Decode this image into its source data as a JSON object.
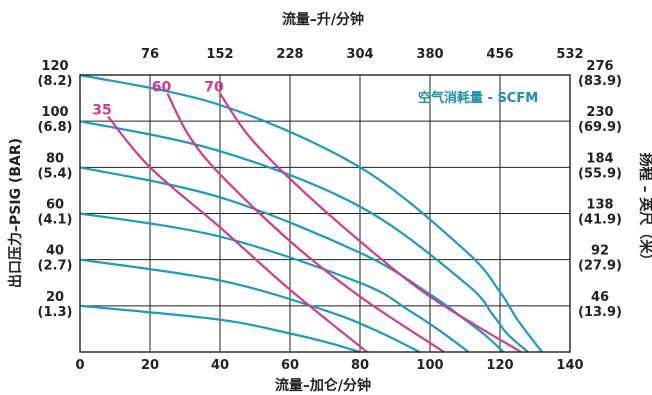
{
  "chart_data": {
    "type": "line",
    "title": "",
    "xlabel": "流量–加仑/分钟",
    "x2label": "流量–升/分钟",
    "ylabel": "出口压力–PSIG (BAR)",
    "y2label": "扬程 – 英尺（米）",
    "xlim": [
      0,
      140
    ],
    "ylim": [
      0,
      120
    ],
    "x_ticks": [
      "0",
      "20",
      "40",
      "60",
      "80",
      "100",
      "120",
      "140"
    ],
    "x2_ticks": [
      "76",
      "152",
      "228",
      "304",
      "380",
      "456",
      "532"
    ],
    "y_ticks": [
      {
        "value": 20,
        "psi": "20",
        "bar": "(1.3)"
      },
      {
        "value": 40,
        "psi": "40",
        "bar": "(2.7)"
      },
      {
        "value": 60,
        "psi": "60",
        "bar": "(4.1)"
      },
      {
        "value": 80,
        "psi": "80",
        "bar": "(5.4)"
      },
      {
        "value": 100,
        "psi": "100",
        "bar": "(6.8)"
      },
      {
        "value": 120,
        "psi": "120",
        "bar": "(8.2)"
      }
    ],
    "y2_ticks": [
      {
        "value": 20,
        "ft": "46",
        "m": "(13.9)"
      },
      {
        "value": 40,
        "ft": "92",
        "m": "(27.9)"
      },
      {
        "value": 60,
        "ft": "138",
        "m": "(41.9)"
      },
      {
        "value": 80,
        "ft": "184",
        "m": "(55.9)"
      },
      {
        "value": 100,
        "ft": "230",
        "m": "(69.9)"
      },
      {
        "value": 120,
        "ft": "276",
        "m": "(83.9)"
      }
    ],
    "annotation": "空气消耗量 - SCFM",
    "grid": true,
    "pressure_curves": [
      {
        "x": [
          0,
          40,
          80,
          110,
          120,
          125,
          132
        ],
        "y": [
          120,
          107,
          80,
          44,
          26,
          14,
          0
        ]
      },
      {
        "x": [
          0,
          40,
          80,
          110,
          118,
          122,
          128
        ],
        "y": [
          100,
          87,
          63,
          30,
          16,
          8,
          0
        ]
      },
      {
        "x": [
          0,
          40,
          80,
          100,
          110,
          116,
          121
        ],
        "y": [
          80,
          67,
          43,
          25,
          14,
          7,
          0
        ]
      },
      {
        "x": [
          0,
          40,
          80,
          94,
          103,
          111
        ],
        "y": [
          60,
          50,
          30,
          18,
          9,
          0
        ]
      },
      {
        "x": [
          0,
          40,
          70,
          85,
          97
        ],
        "y": [
          40,
          31,
          18,
          9,
          0
        ]
      },
      {
        "x": [
          0,
          40,
          60,
          71,
          80
        ],
        "y": [
          20,
          14,
          8,
          4,
          0
        ]
      }
    ],
    "series": [
      {
        "name": "35",
        "x": [
          8,
          20,
          40,
          60,
          82
        ],
        "y": [
          102,
          80,
          54,
          27,
          0
        ]
      },
      {
        "name": "60",
        "x": [
          25,
          31,
          40,
          60,
          80,
          104
        ],
        "y": [
          112,
          94,
          77,
          48,
          24,
          0
        ]
      },
      {
        "name": "70",
        "x": [
          40,
          48,
          60,
          80,
          100,
          126
        ],
        "y": [
          112,
          94,
          75,
          48,
          24,
          0
        ]
      }
    ],
    "colors": {
      "pressure": "#1a9bc0",
      "air": "#d43a8c",
      "grid": "#222222"
    }
  }
}
